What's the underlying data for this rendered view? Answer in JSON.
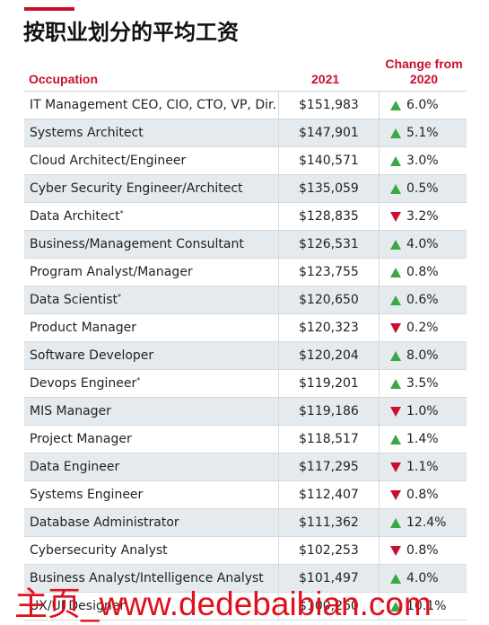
{
  "header": {
    "title": "按职业划分的平均工资"
  },
  "table": {
    "columns": [
      "Occupation",
      "2021",
      "Change from 2020"
    ],
    "rows": [
      {
        "occupation": "IT Management CEO, CIO, CTO, VP, Dir.",
        "salary": "$151,983",
        "direction": "up",
        "change": "6.0%"
      },
      {
        "occupation": "Systems Architect",
        "salary": "$147,901",
        "direction": "up",
        "change": "5.1%"
      },
      {
        "occupation": "Cloud Architect/Engineer",
        "salary": "$140,571",
        "direction": "up",
        "change": "3.0%"
      },
      {
        "occupation": "Cyber Security Engineer/Architect",
        "salary": "$135,059",
        "direction": "up",
        "change": "0.5%"
      },
      {
        "occupation": "Data Architect",
        "note": "*",
        "salary": "$128,835",
        "direction": "down",
        "change": "3.2%"
      },
      {
        "occupation": "Business/Management Consultant",
        "salary": "$126,531",
        "direction": "up",
        "change": "4.0%"
      },
      {
        "occupation": "Program Analyst/Manager",
        "salary": "$123,755",
        "direction": "up",
        "change": "0.8%"
      },
      {
        "occupation": "Data Scientist",
        "note": "*",
        "salary": "$120,650",
        "direction": "up",
        "change": "0.6%"
      },
      {
        "occupation": "Product Manager",
        "salary": "$120,323",
        "direction": "down",
        "change": "0.2%"
      },
      {
        "occupation": "Software Developer",
        "salary": "$120,204",
        "direction": "up",
        "change": "8.0%"
      },
      {
        "occupation": "Devops Engineer",
        "note": "*",
        "salary": "$119,201",
        "direction": "up",
        "change": "3.5%"
      },
      {
        "occupation": "MIS Manager",
        "salary": "$119,186",
        "direction": "down",
        "change": "1.0%"
      },
      {
        "occupation": "Project Manager",
        "salary": "$118,517",
        "direction": "up",
        "change": "1.4%"
      },
      {
        "occupation": "Data Engineer",
        "salary": "$117,295",
        "direction": "down",
        "change": "1.1%"
      },
      {
        "occupation": "Systems Engineer",
        "salary": "$112,407",
        "direction": "down",
        "change": "0.8%"
      },
      {
        "occupation": "Database Administrator",
        "salary": "$111,362",
        "direction": "up",
        "change": "12.4%"
      },
      {
        "occupation": "Cybersecurity Analyst",
        "salary": "$102,253",
        "direction": "down",
        "change": "0.8%"
      },
      {
        "occupation": "Business Analyst/Intelligence Analyst",
        "salary": "$101,497",
        "direction": "up",
        "change": "4.0%"
      },
      {
        "occupation": "UX/UI Designer",
        "salary": "$100,260",
        "direction": "up",
        "change": "10.1%"
      }
    ]
  },
  "watermark": "主页_www.dedebaibian.com"
}
